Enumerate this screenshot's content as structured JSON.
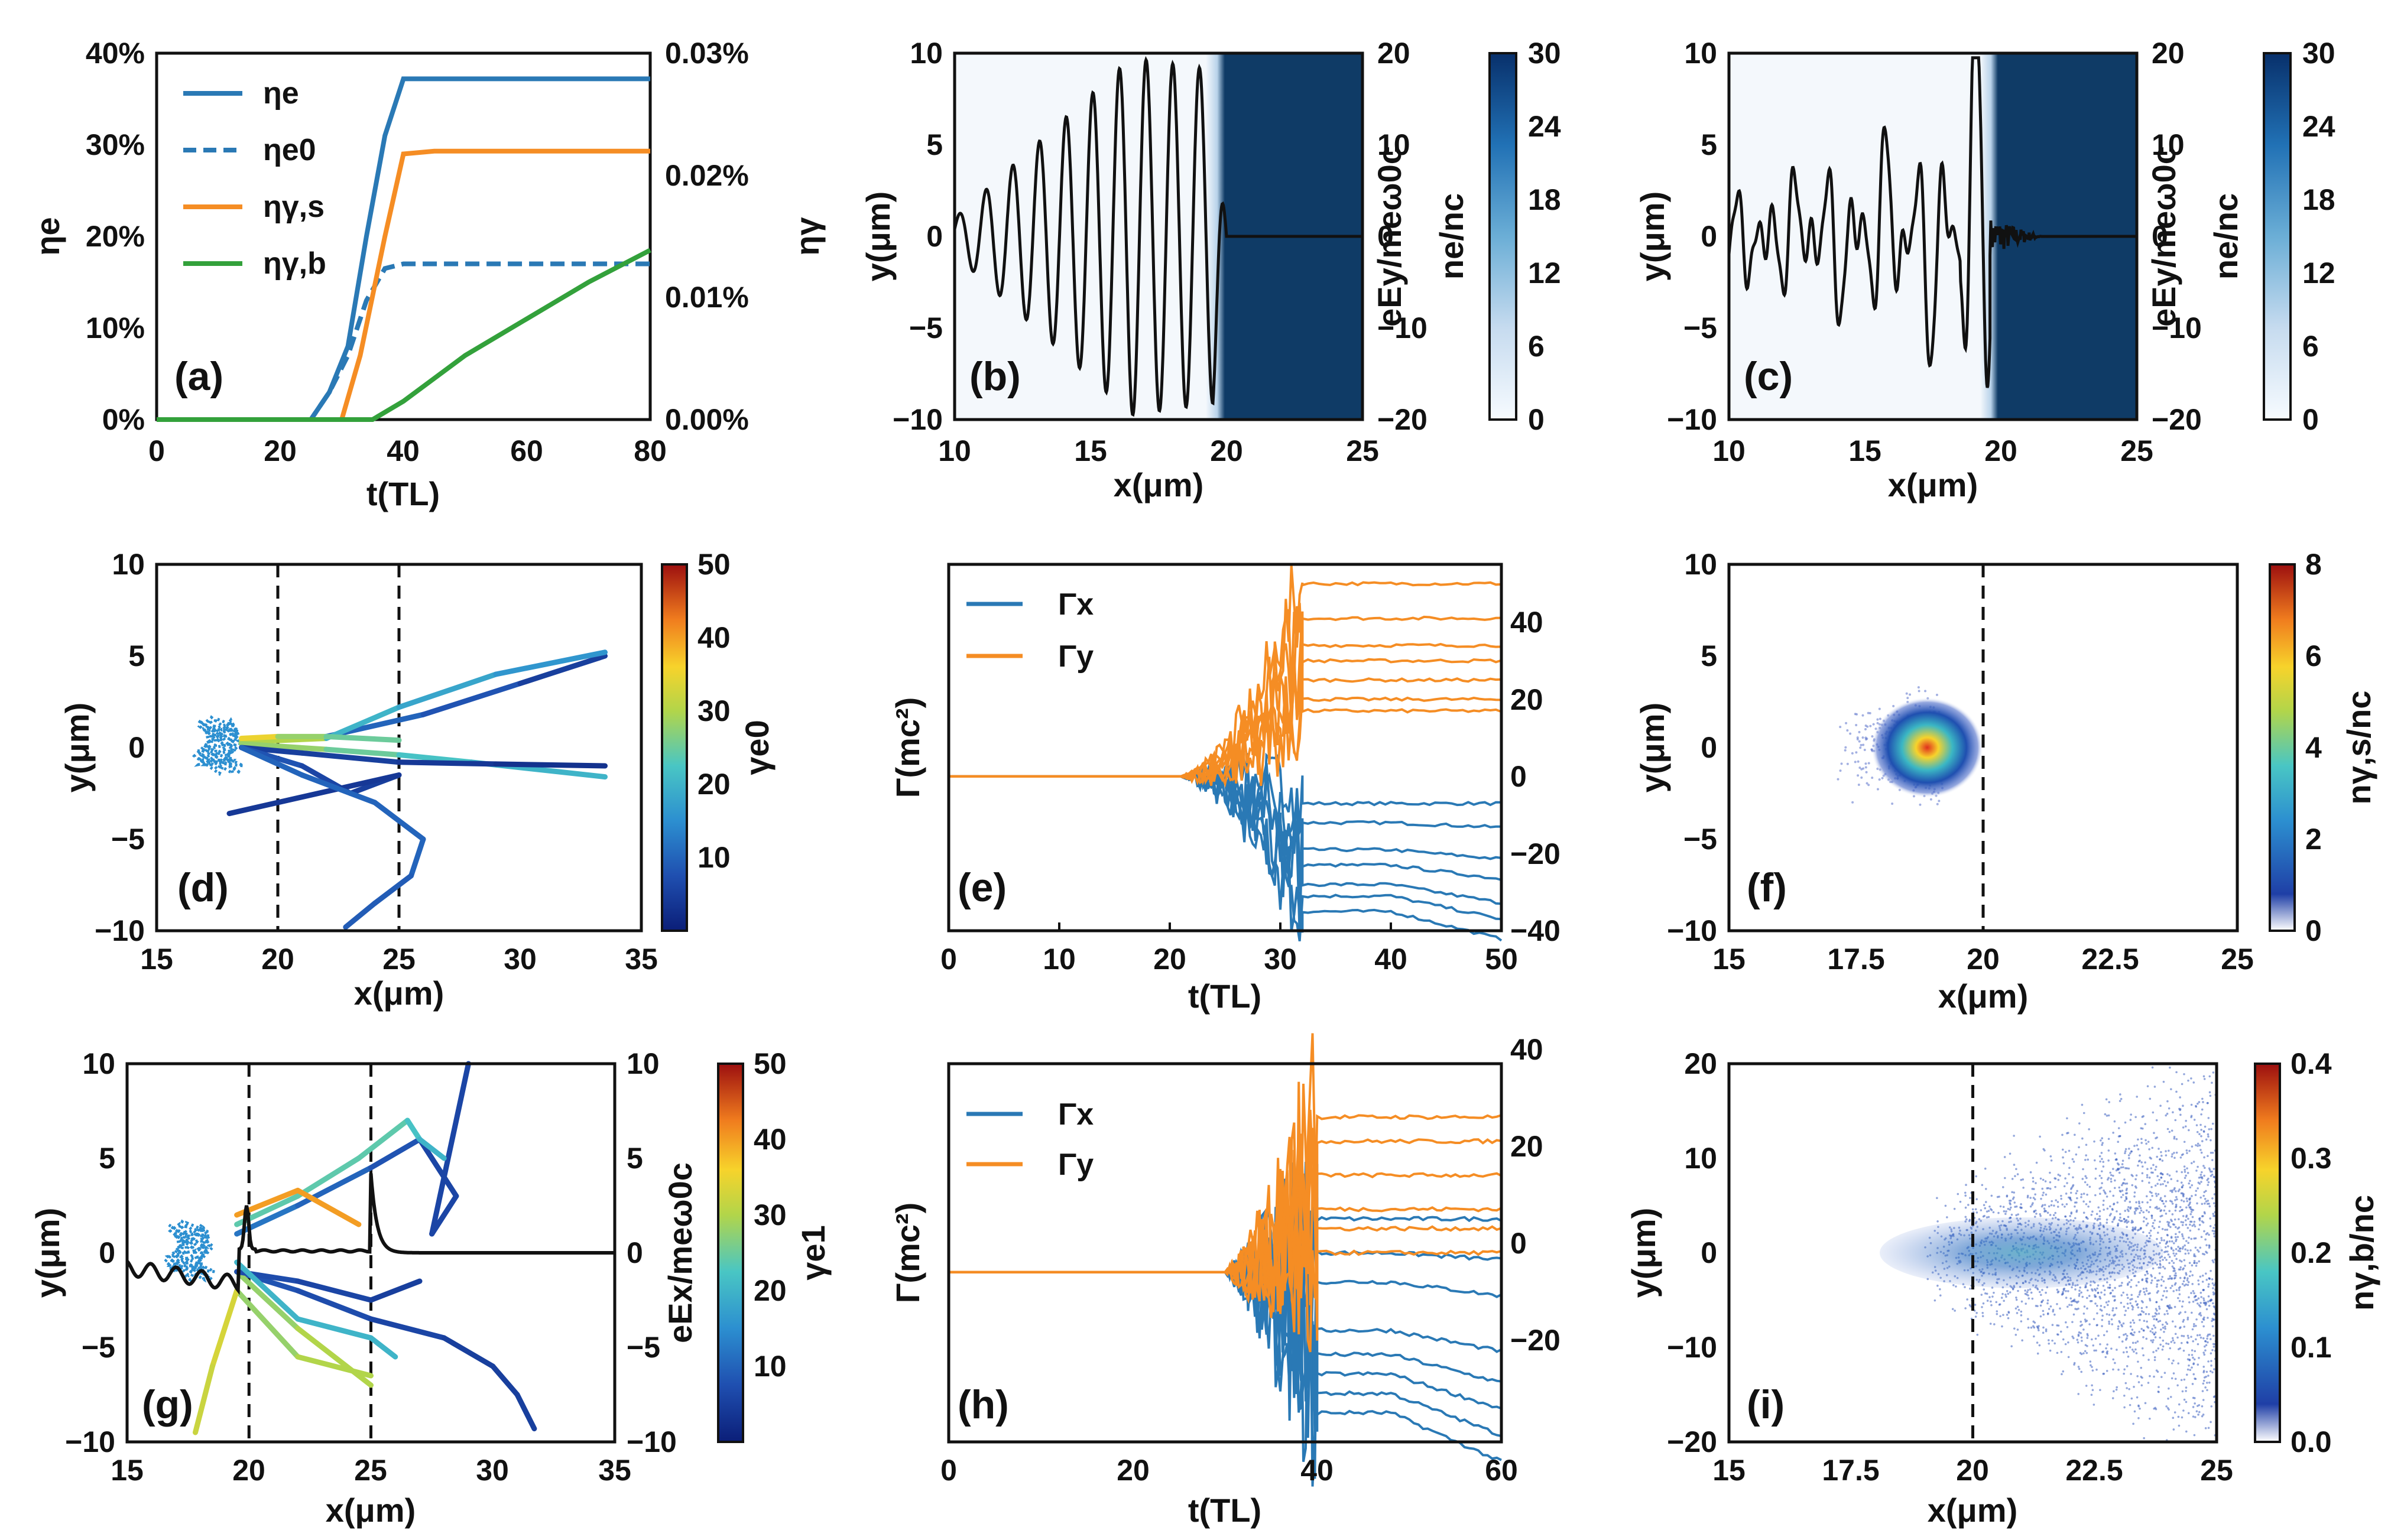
{
  "colors": {
    "blue": "#2a79b5",
    "orange": "#f58d24",
    "green": "#33a13b",
    "black": "#111111",
    "density_dark": "#0f3b66"
  },
  "chart_data": [
    {
      "id": "a",
      "type": "line",
      "label": "(a)",
      "xlabel": "t(TL)",
      "ylabel": "ηe",
      "y2label": "ηγ",
      "xlim": [
        0,
        80
      ],
      "ylim": [
        0,
        40
      ],
      "y2lim": [
        0,
        0.03
      ],
      "xticks": [
        "0",
        "20",
        "40",
        "60",
        "80"
      ],
      "yticks": [
        "0%",
        "10%",
        "20%",
        "30%",
        "40%"
      ],
      "y2ticks": [
        "0.00%",
        "0.01%",
        "0.02%",
        "0.03%"
      ],
      "legend": [
        "ηe",
        "ηe0",
        "ηγ,s",
        "ηγ,b"
      ],
      "series": [
        {
          "name": "ηe",
          "color": "#2a79b5",
          "dash": false,
          "x": [
            0,
            25,
            28,
            31,
            34,
            37,
            40,
            80
          ],
          "y": [
            0,
            0,
            3,
            8,
            20,
            31,
            37.2,
            37.2
          ]
        },
        {
          "name": "ηe0",
          "color": "#2a79b5",
          "dash": true,
          "x": [
            0,
            25,
            28,
            31,
            34,
            37,
            40,
            80
          ],
          "y": [
            0,
            0,
            3,
            7,
            13,
            16.5,
            17,
            17
          ]
        },
        {
          "name": "ηγ,s",
          "color": "#f58d24",
          "dash": false,
          "x": [
            0,
            30,
            33,
            37,
            40,
            45,
            80
          ],
          "y": [
            0,
            0,
            7,
            20,
            29,
            29.3,
            29.3
          ]
        },
        {
          "name": "ηγ,b",
          "color": "#33a13b",
          "dash": false,
          "x": [
            0,
            35,
            40,
            50,
            60,
            70,
            80
          ],
          "y": [
            0,
            0,
            2,
            7,
            11,
            15,
            18.5
          ]
        }
      ]
    },
    {
      "id": "b",
      "type": "line",
      "label": "(b)",
      "xlabel": "x(μm)",
      "ylabel": "y(μm)",
      "y2label": "eEy/meω0c",
      "cbarlabel": "ne/nc",
      "xlim": [
        10,
        25
      ],
      "ylim": [
        -10,
        10
      ],
      "y2lim": [
        -20,
        20
      ],
      "cbarlim": [
        0,
        30
      ],
      "xticks": [
        "10",
        "15",
        "20",
        "25"
      ],
      "yticks": [
        "−10",
        "−5",
        "0",
        "5",
        "10"
      ],
      "y2ticks": [
        "−20",
        "−10",
        "0",
        "10",
        "20"
      ],
      "cbarticks": [
        "0",
        "6",
        "12",
        "18",
        "24",
        "30"
      ],
      "series": [
        {
          "name": "eEy",
          "color": "#111111",
          "model": "wave",
          "x0": 10,
          "x1": 20,
          "wavelength": 0.98,
          "amp_start": 2,
          "amp_peak": 19.5,
          "peak_x": 16.5,
          "amp_end": 18,
          "decay_to": 0,
          "flat_until": 25
        }
      ]
    },
    {
      "id": "c",
      "type": "line",
      "label": "(c)",
      "xlabel": "x(μm)",
      "ylabel": "y(μm)",
      "y2label": "eEy/meω0c",
      "cbarlabel": "ne/nc",
      "xlim": [
        10,
        25
      ],
      "ylim": [
        -10,
        10
      ],
      "y2lim": [
        -20,
        20
      ],
      "cbarlim": [
        0,
        30
      ],
      "xticks": [
        "10",
        "15",
        "20",
        "25"
      ],
      "yticks": [
        "−10",
        "−5",
        "0",
        "5",
        "10"
      ],
      "y2ticks": [
        "−20",
        "−10",
        "0",
        "10",
        "20"
      ],
      "cbarticks": [
        "0",
        "6",
        "12",
        "18",
        "24",
        "30"
      ],
      "series": [
        {
          "name": "eEy",
          "color": "#111111",
          "model": "irregular",
          "x0": 10,
          "x1": 19.6,
          "flat_until": 25
        }
      ]
    },
    {
      "id": "d",
      "type": "scatter",
      "label": "(d)",
      "xlabel": "x(μm)",
      "ylabel": "y(μm)",
      "cbarlabel": "γe0",
      "xlim": [
        15,
        35
      ],
      "ylim": [
        -10,
        10
      ],
      "cbarlim": [
        0,
        50
      ],
      "xticks": [
        "15",
        "20",
        "25",
        "30",
        "35"
      ],
      "yticks": [
        "−10",
        "−5",
        "0",
        "5",
        "10"
      ],
      "cbarticks": [
        "10",
        "20",
        "30",
        "40",
        "50"
      ],
      "vlines": [
        20,
        25
      ],
      "trajectories": [
        {
          "x": [
            18.5,
            22,
            26,
            30,
            33.5
          ],
          "y": [
            0.3,
            0.6,
            1.8,
            3.5,
            5
          ],
          "c": [
            15,
            18,
            10,
            8,
            5
          ]
        },
        {
          "x": [
            18.5,
            22,
            25,
            29,
            33.5
          ],
          "y": [
            0.3,
            0.5,
            2.2,
            4,
            5.2
          ],
          "c": [
            35,
            30,
            20,
            18,
            16
          ]
        },
        {
          "x": [
            18.5,
            22,
            25,
            28,
            33.5
          ],
          "y": [
            0.2,
            -0.1,
            -0.4,
            -0.8,
            -1.6
          ],
          "c": [
            20,
            28,
            25,
            22,
            20
          ]
        },
        {
          "x": [
            18.5,
            21,
            25,
            29,
            33.5
          ],
          "y": [
            0,
            -0.3,
            -0.8,
            -0.9,
            -1
          ],
          "c": [
            8,
            5,
            5,
            4,
            3
          ]
        },
        {
          "x": [
            18.5,
            20,
            22,
            25
          ],
          "y": [
            0.5,
            0.6,
            0.6,
            0.4
          ],
          "c": [
            40,
            35,
            28,
            25
          ]
        },
        {
          "x": [
            18.5,
            21,
            23,
            25,
            20,
            18
          ],
          "y": [
            0,
            -1,
            -2.5,
            -1.5,
            -3,
            -3.6
          ],
          "c": [
            10,
            8,
            6,
            5,
            4,
            4
          ]
        },
        {
          "x": [
            18.5,
            21,
            24,
            26,
            25.5,
            24,
            22.8
          ],
          "y": [
            0,
            -1.5,
            -3,
            -5,
            -7,
            -8.5,
            -9.8
          ],
          "c": [
            12,
            10,
            10,
            10,
            10,
            9,
            9
          ]
        }
      ]
    },
    {
      "id": "e",
      "type": "line",
      "label": "(e)",
      "xlabel": "t(TL)",
      "ylabel": "Γ(mc²)",
      "xlim": [
        0,
        50
      ],
      "ylim": [
        -40,
        55
      ],
      "xticks": [
        "0",
        "10",
        "20",
        "30",
        "40",
        "50"
      ],
      "y2ticks": [
        "−40",
        "−20",
        "0",
        "20",
        "40"
      ],
      "legend": [
        "Γx",
        "Γy"
      ],
      "series": [
        {
          "name": "Γx",
          "color": "#2a79b5",
          "t_start": 21,
          "t_jump": 32,
          "finals": [
            -7,
            -12,
            -19,
            -23,
            -28,
            -31,
            -35
          ]
        },
        {
          "name": "Γy",
          "color": "#f58d24",
          "t_start": 21,
          "t_jump": 32,
          "finals": [
            50,
            41,
            34,
            30,
            25,
            20,
            17
          ]
        }
      ]
    },
    {
      "id": "f",
      "type": "heatmap",
      "label": "(f)",
      "xlabel": "x(μm)",
      "ylabel": "y(μm)",
      "cbarlabel": "nγ,s/nc",
      "xlim": [
        15,
        25
      ],
      "ylim": [
        -10,
        10
      ],
      "cbarlim": [
        0,
        8
      ],
      "xticks": [
        "15",
        "17.5",
        "20",
        "22.5",
        "25"
      ],
      "yticks": [
        "−10",
        "−5",
        "0",
        "5",
        "10"
      ],
      "cbarticks": [
        "0",
        "2",
        "4",
        "6",
        "8"
      ],
      "vlines": [
        20
      ],
      "blob": {
        "cx": 19.2,
        "cy": 0,
        "peak": 7
      }
    },
    {
      "id": "g",
      "type": "scatter",
      "label": "(g)",
      "xlabel": "x(μm)",
      "ylabel": "y(μm)",
      "y2label": "eEx/meω0c",
      "cbarlabel": "γe1",
      "xlim": [
        15,
        35
      ],
      "ylim": [
        -10,
        10
      ],
      "y2lim": [
        -10,
        10
      ],
      "cbarlim": [
        0,
        50
      ],
      "xticks": [
        "15",
        "20",
        "25",
        "30",
        "35"
      ],
      "yticks": [
        "−10",
        "−5",
        "0",
        "5",
        "10"
      ],
      "y2ticks": [
        "−10",
        "−5",
        "0",
        "5",
        "10"
      ],
      "cbarticks": [
        "10",
        "20",
        "30",
        "40",
        "50"
      ],
      "vlines": [
        20,
        25
      ],
      "trajectories": [
        {
          "x": [
            19.5,
            22,
            25,
            27,
            28.5,
            27.5,
            29
          ],
          "y": [
            1,
            2.5,
            4.5,
            6,
            3,
            1,
            10
          ],
          "c": [
            15,
            12,
            10,
            8,
            6,
            6,
            6
          ]
        },
        {
          "x": [
            19.5,
            22,
            25,
            28,
            30,
            31,
            31.7
          ],
          "y": [
            -1,
            -2,
            -3.5,
            -4.5,
            -6,
            -7.5,
            -9.3
          ],
          "c": [
            10,
            8,
            7,
            6,
            5,
            5,
            5
          ]
        },
        {
          "x": [
            19.5,
            22,
            24.5,
            26.5,
            27,
            28
          ],
          "y": [
            1.5,
            3,
            5,
            7,
            6,
            5
          ],
          "c": [
            25,
            24,
            24,
            24,
            22,
            20
          ]
        },
        {
          "x": [
            19.5,
            22,
            25
          ],
          "y": [
            -1,
            -4,
            -7
          ],
          "c": [
            30,
            28,
            30
          ]
        },
        {
          "x": [
            19.5,
            22,
            25
          ],
          "y": [
            -2,
            -5.5,
            -6.5
          ],
          "c": [
            30,
            28,
            30
          ]
        },
        {
          "x": [
            19.5,
            18.5,
            17.8
          ],
          "y": [
            -2,
            -6,
            -9.5
          ],
          "c": [
            35,
            33,
            32
          ]
        },
        {
          "x": [
            19.5,
            22,
            25,
            27
          ],
          "y": [
            -1,
            -1.5,
            -2.5,
            -1.5
          ],
          "c": [
            8,
            7,
            6,
            5
          ]
        },
        {
          "x": [
            19.5,
            22,
            24.5
          ],
          "y": [
            2,
            3.3,
            1.5
          ],
          "c": [
            40,
            40,
            40
          ]
        },
        {
          "x": [
            19.5,
            22,
            25,
            26
          ],
          "y": [
            -0.5,
            -3.5,
            -4.5,
            -5.5
          ],
          "c": [
            20,
            20,
            20,
            20
          ]
        }
      ],
      "field_line": {
        "name": "eEx",
        "color": "#111111"
      }
    },
    {
      "id": "h",
      "type": "line",
      "label": "(h)",
      "xlabel": "t(TL)",
      "ylabel": "Γ(mc²)",
      "xlim": [
        0,
        60
      ],
      "ylim": [
        -35,
        43
      ],
      "xticks": [
        "0",
        "20",
        "40",
        "60"
      ],
      "y2ticks": [
        "−20",
        "0",
        "20",
        "40"
      ],
      "legend": [
        "Γx",
        "Γy"
      ],
      "series": [
        {
          "name": "Γx",
          "color": "#2a79b5",
          "t_start": 30,
          "t_jump": 40,
          "finals": [
            11,
            4,
            -2,
            -12,
            -17,
            -21,
            -25,
            -29
          ]
        },
        {
          "name": "Γy",
          "color": "#f58d24",
          "t_start": 30,
          "t_jump": 40,
          "finals": [
            32,
            27,
            20,
            13,
            9,
            4
          ]
        }
      ]
    },
    {
      "id": "i",
      "type": "heatmap",
      "label": "(i)",
      "xlabel": "x(μm)",
      "ylabel": "y(μm)",
      "cbarlabel": "nγ,b/nc",
      "xlim": [
        15,
        25
      ],
      "ylim": [
        -20,
        20
      ],
      "cbarlim": [
        0,
        0.4
      ],
      "xticks": [
        "15",
        "17.5",
        "20",
        "22.5",
        "25"
      ],
      "yticks": [
        "−20",
        "−10",
        "0",
        "10",
        "20"
      ],
      "cbarticks": [
        "0.0",
        "0.1",
        "0.2",
        "0.3",
        "0.4"
      ],
      "vlines": [
        20
      ],
      "blob": {
        "cx": 21,
        "cy": 0,
        "peak": 0.15
      }
    }
  ]
}
